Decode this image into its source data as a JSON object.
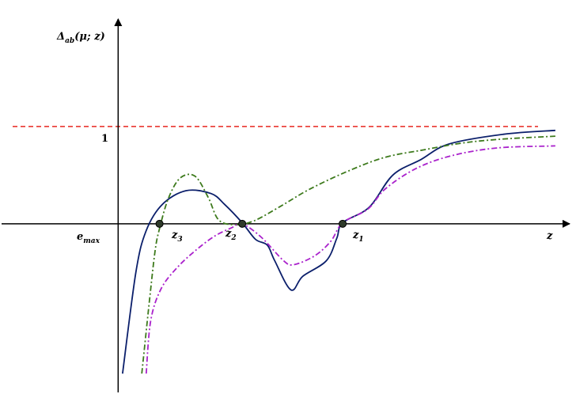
{
  "chart_data": {
    "type": "line",
    "title": "",
    "y_axis_label": {
      "main": "Δ",
      "sub": "ab",
      "rest": "(μ; z)"
    },
    "x_axis_label": "z",
    "y_tick_label": "1",
    "left_label": {
      "main": "e",
      "sub": "max"
    },
    "point_labels": [
      {
        "main": "z",
        "sub": "3"
      },
      {
        "main": "z",
        "sub": "2"
      },
      {
        "main": "z",
        "sub": "1"
      }
    ],
    "reference_line": {
      "y": 1,
      "color": "#e8261f",
      "style": "dashed"
    },
    "series": [
      {
        "color": "#0b1f6b",
        "style": "solid",
        "points": [
          [
            0.03,
            -1.54
          ],
          [
            0.12,
            -0.5
          ],
          [
            0.19,
            -0.07
          ],
          [
            0.3,
            0.2
          ],
          [
            0.46,
            0.34
          ],
          [
            0.63,
            0.31
          ],
          [
            0.72,
            0.2
          ],
          [
            0.84,
            0.01
          ],
          [
            0.93,
            -0.16
          ],
          [
            1.01,
            -0.22
          ],
          [
            1.06,
            -0.38
          ],
          [
            1.17,
            -0.68
          ],
          [
            1.25,
            -0.54
          ],
          [
            1.41,
            -0.38
          ],
          [
            1.48,
            -0.15
          ],
          [
            1.52,
            0.01
          ],
          [
            1.7,
            0.17
          ],
          [
            1.86,
            0.5
          ],
          [
            2.05,
            0.66
          ],
          [
            2.24,
            0.82
          ],
          [
            2.61,
            0.92
          ],
          [
            2.96,
            0.96
          ]
        ]
      },
      {
        "color": "#3d7a1c",
        "style": "dashdot",
        "points": [
          [
            0.16,
            -1.54
          ],
          [
            0.21,
            -0.82
          ],
          [
            0.25,
            -0.28
          ],
          [
            0.28,
            -0.05
          ],
          [
            0.34,
            0.26
          ],
          [
            0.42,
            0.47
          ],
          [
            0.52,
            0.49
          ],
          [
            0.61,
            0.27
          ],
          [
            0.68,
            0.04
          ],
          [
            0.79,
            -0.01
          ],
          [
            0.92,
            0.03
          ],
          [
            1.1,
            0.18
          ],
          [
            1.29,
            0.35
          ],
          [
            1.54,
            0.53
          ],
          [
            1.8,
            0.68
          ],
          [
            2.07,
            0.76
          ],
          [
            2.33,
            0.83
          ],
          [
            2.6,
            0.87
          ],
          [
            2.96,
            0.9
          ]
        ]
      },
      {
        "color": "#aa22cc",
        "style": "dashdot",
        "points": [
          [
            0.19,
            -1.54
          ],
          [
            0.22,
            -1.0
          ],
          [
            0.29,
            -0.67
          ],
          [
            0.4,
            -0.45
          ],
          [
            0.52,
            -0.28
          ],
          [
            0.65,
            -0.13
          ],
          [
            0.77,
            -0.04
          ],
          [
            0.84,
            0.0
          ],
          [
            0.97,
            -0.14
          ],
          [
            1.12,
            -0.38
          ],
          [
            1.19,
            -0.42
          ],
          [
            1.33,
            -0.33
          ],
          [
            1.44,
            -0.18
          ],
          [
            1.52,
            0.01
          ],
          [
            1.69,
            0.15
          ],
          [
            1.81,
            0.36
          ],
          [
            2.02,
            0.57
          ],
          [
            2.26,
            0.7
          ],
          [
            2.57,
            0.78
          ],
          [
            2.96,
            0.8
          ]
        ]
      }
    ],
    "intersection_points": [
      [
        0.28,
        0.0
      ],
      [
        0.84,
        0.0
      ],
      [
        1.52,
        0.0
      ]
    ],
    "xlim": [
      -0.8,
      3.1
    ],
    "ylim": [
      -1.75,
      2.3
    ],
    "grid": false,
    "legend": "none"
  }
}
